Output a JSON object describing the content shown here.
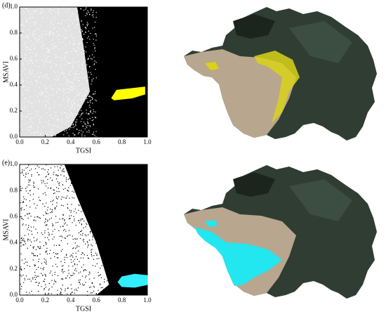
{
  "charts": [
    {
      "type": "scatter",
      "panel": "(d)",
      "x_label": "TGSI",
      "y_label": "MSAVI",
      "xlim": [
        0,
        1
      ],
      "ylim": [
        0,
        1
      ],
      "xticks": [
        {
          "value": 0,
          "label": "0.0"
        },
        {
          "value": 0.2,
          "label": "0.2"
        },
        {
          "value": 0.4,
          "label": "0.4"
        },
        {
          "value": 0.6,
          "label": "0.6"
        },
        {
          "value": 0.8,
          "label": "0.8"
        },
        {
          "value": 1,
          "label": "1.0"
        }
      ],
      "yticks": [
        {
          "value": 0,
          "label": "0.0"
        },
        {
          "value": 0.2,
          "label": "0.2"
        },
        {
          "value": 0.4,
          "label": "0.4"
        },
        {
          "value": 0.6,
          "label": "0.6"
        },
        {
          "value": 0.8,
          "label": "0.8"
        },
        {
          "value": 1,
          "label": "1.0"
        }
      ],
      "background": "#e2e2e2",
      "highlight": {
        "color": "#ffff00",
        "x": [
          0.72,
          0.76,
          0.98,
          0.98,
          0.88,
          0.74
        ],
        "y": [
          0.3,
          0.36,
          0.385,
          0.33,
          0.3,
          0.285
        ]
      }
    },
    {
      "type": "scatter",
      "panel": "(e)",
      "x_label": "TGSI",
      "y_label": "MSAVI",
      "xlim": [
        0,
        1
      ],
      "ylim": [
        0,
        1
      ],
      "xticks": [
        {
          "value": 0,
          "label": "0.0"
        },
        {
          "value": 0.2,
          "label": "0.2"
        },
        {
          "value": 0.4,
          "label": "0.4"
        },
        {
          "value": 0.6,
          "label": "0.6"
        },
        {
          "value": 0.8,
          "label": "0.8"
        },
        {
          "value": 1,
          "label": "1.0"
        }
      ],
      "yticks": [
        {
          "value": 0,
          "label": "0.0"
        },
        {
          "value": 0.2,
          "label": "0.2"
        },
        {
          "value": 0.4,
          "label": "0.4"
        },
        {
          "value": 0.6,
          "label": "0.6"
        },
        {
          "value": 0.8,
          "label": "0.8"
        },
        {
          "value": 1,
          "label": "1.0"
        }
      ],
      "background": "#ffffff",
      "highlight": {
        "color": "#33eeff",
        "x": [
          0.77,
          0.8,
          0.9,
          1.0,
          1.0,
          0.9,
          0.8
        ],
        "y": [
          0.1,
          0.14,
          0.16,
          0.15,
          0.08,
          0.06,
          0.065
        ]
      }
    }
  ]
}
